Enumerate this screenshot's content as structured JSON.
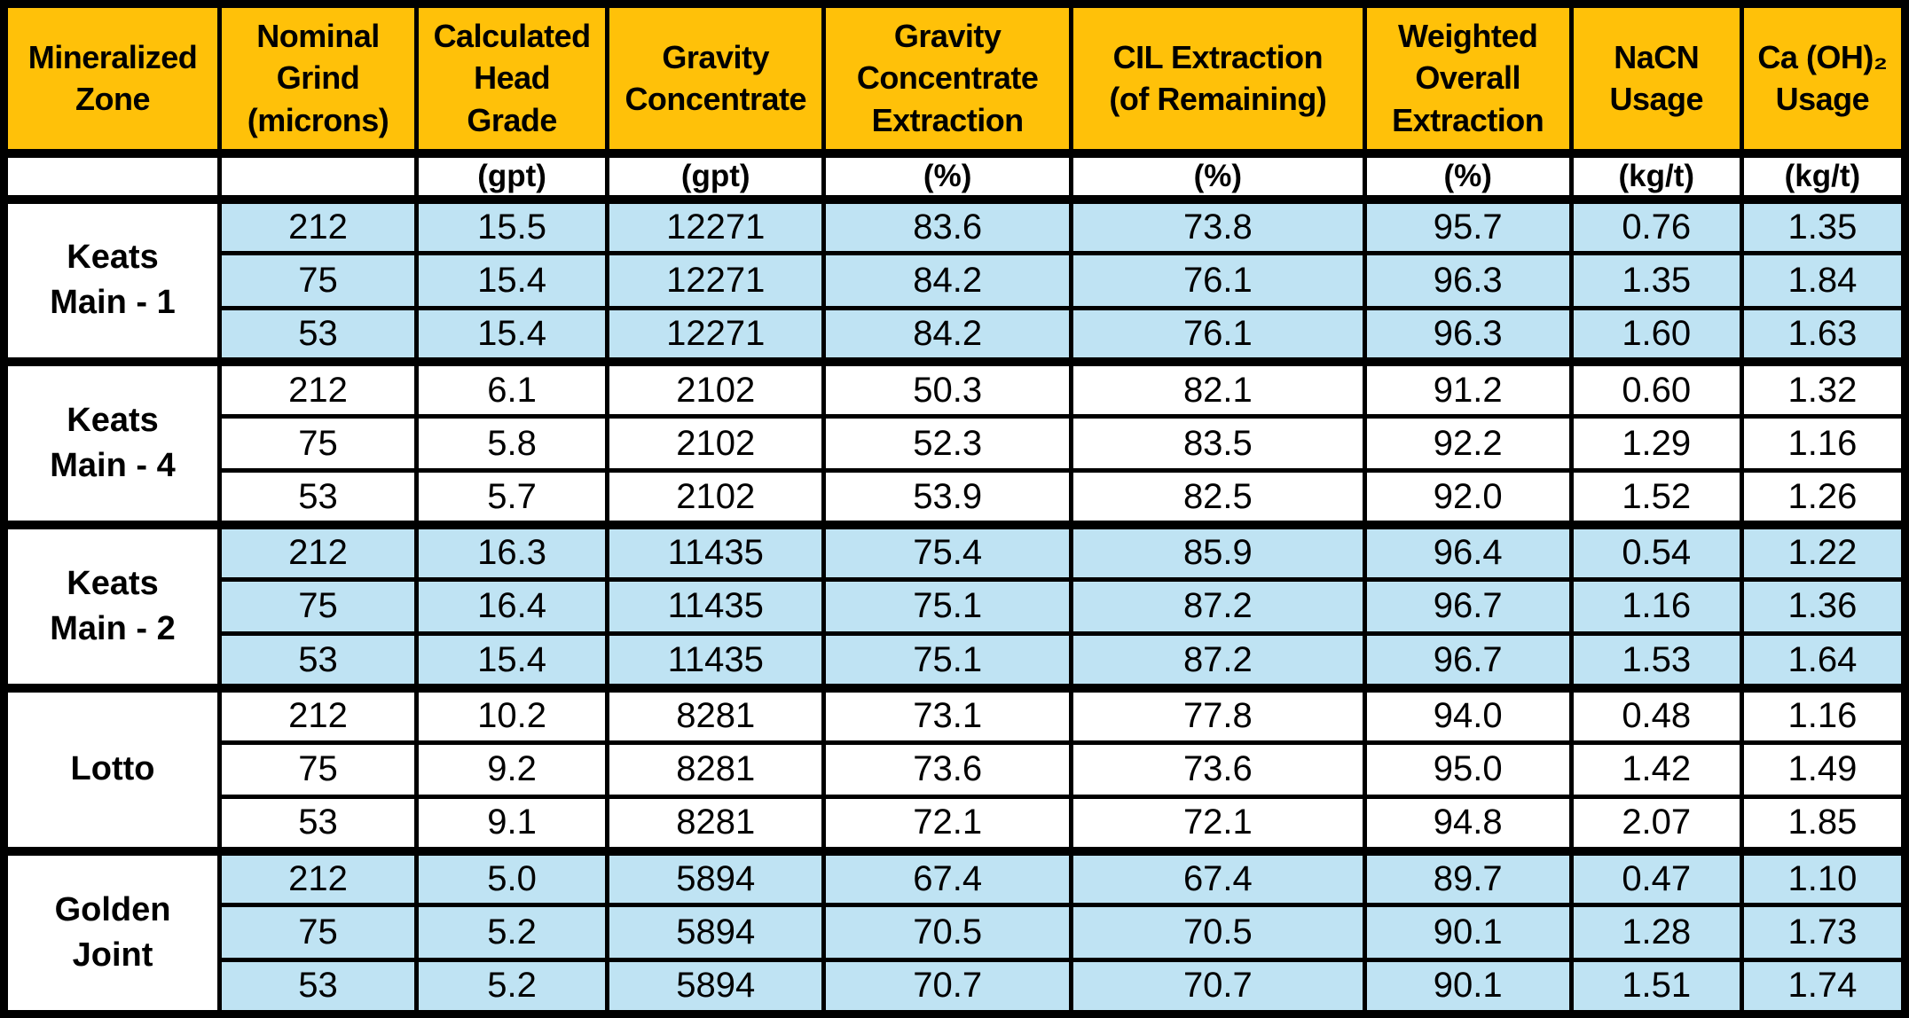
{
  "colors": {
    "header_bg": "#FFC109",
    "shaded_row_bg": "#BFE3F3",
    "border": "#000000",
    "text": "#000000"
  },
  "chart_data": {
    "type": "table",
    "columns": [
      {
        "label": "Mineralized\nZone",
        "unit": ""
      },
      {
        "label": "Nominal\nGrind\n(microns)",
        "unit": ""
      },
      {
        "label": "Calculated\nHead\nGrade",
        "unit": "(gpt)"
      },
      {
        "label": "Gravity\nConcentrate",
        "unit": "(gpt)"
      },
      {
        "label": "Gravity\nConcentrate\nExtraction",
        "unit": "(%)"
      },
      {
        "label": "CIL  Extraction\n(of Remaining)",
        "unit": "(%)"
      },
      {
        "label": "Weighted\nOverall\nExtraction",
        "unit": "(%)"
      },
      {
        "label": "NaCN\nUsage",
        "unit": "(kg/t)"
      },
      {
        "label": "Ca (OH)₂\nUsage",
        "unit": "(kg/t)"
      }
    ],
    "groups": [
      {
        "zone": "Keats\nMain - 1",
        "shaded": true,
        "rows": [
          [
            "212",
            "15.5",
            "12271",
            "83.6",
            "73.8",
            "95.7",
            "0.76",
            "1.35"
          ],
          [
            "75",
            "15.4",
            "12271",
            "84.2",
            "76.1",
            "96.3",
            "1.35",
            "1.84"
          ],
          [
            "53",
            "15.4",
            "12271",
            "84.2",
            "76.1",
            "96.3",
            "1.60",
            "1.63"
          ]
        ]
      },
      {
        "zone": "Keats\nMain - 4",
        "shaded": false,
        "rows": [
          [
            "212",
            "6.1",
            "2102",
            "50.3",
            "82.1",
            "91.2",
            "0.60",
            "1.32"
          ],
          [
            "75",
            "5.8",
            "2102",
            "52.3",
            "83.5",
            "92.2",
            "1.29",
            "1.16"
          ],
          [
            "53",
            "5.7",
            "2102",
            "53.9",
            "82.5",
            "92.0",
            "1.52",
            "1.26"
          ]
        ]
      },
      {
        "zone": "Keats\nMain - 2",
        "shaded": true,
        "rows": [
          [
            "212",
            "16.3",
            "11435",
            "75.4",
            "85.9",
            "96.4",
            "0.54",
            "1.22"
          ],
          [
            "75",
            "16.4",
            "11435",
            "75.1",
            "87.2",
            "96.7",
            "1.16",
            "1.36"
          ],
          [
            "53",
            "15.4",
            "11435",
            "75.1",
            "87.2",
            "96.7",
            "1.53",
            "1.64"
          ]
        ]
      },
      {
        "zone": "Lotto",
        "shaded": false,
        "rows": [
          [
            "212",
            "10.2",
            "8281",
            "73.1",
            "77.8",
            "94.0",
            "0.48",
            "1.16"
          ],
          [
            "75",
            "9.2",
            "8281",
            "73.6",
            "73.6",
            "95.0",
            "1.42",
            "1.49"
          ],
          [
            "53",
            "9.1",
            "8281",
            "72.1",
            "72.1",
            "94.8",
            "2.07",
            "1.85"
          ]
        ]
      },
      {
        "zone": "Golden\nJoint",
        "shaded": true,
        "rows": [
          [
            "212",
            "5.0",
            "5894",
            "67.4",
            "67.4",
            "89.7",
            "0.47",
            "1.10"
          ],
          [
            "75",
            "5.2",
            "5894",
            "70.5",
            "70.5",
            "90.1",
            "1.28",
            "1.73"
          ],
          [
            "53",
            "5.2",
            "5894",
            "70.7",
            "70.7",
            "90.1",
            "1.51",
            "1.74"
          ]
        ]
      }
    ]
  }
}
